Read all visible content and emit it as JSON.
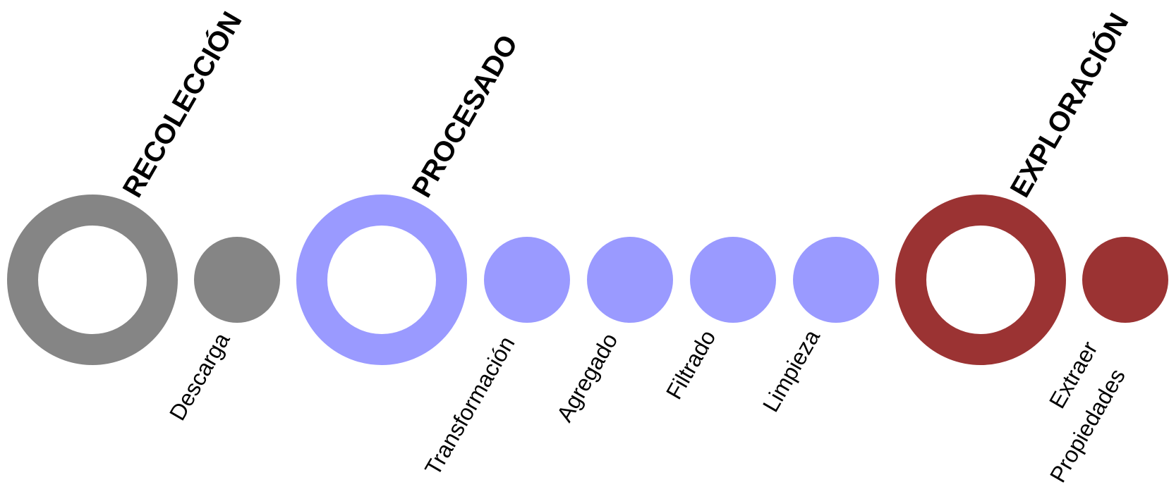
{
  "colors": {
    "recoleccion": "#858585",
    "procesado": "#9a9aff",
    "exploracion": "#9b3333"
  },
  "phases": [
    {
      "id": "recoleccion",
      "label": "RECOLECCIÓN",
      "color": "#858585"
    },
    {
      "id": "procesado",
      "label": "PROCESADO",
      "color": "#9a9aff"
    },
    {
      "id": "exploracion",
      "label": "EXPLORACIÓN",
      "color": "#9b3333"
    }
  ],
  "steps": [
    {
      "id": "descarga",
      "phase": "recoleccion",
      "lines": [
        "Descarga"
      ]
    },
    {
      "id": "transformacion",
      "phase": "procesado",
      "lines": [
        "Transformación"
      ]
    },
    {
      "id": "agregado",
      "phase": "procesado",
      "lines": [
        "Agregado"
      ]
    },
    {
      "id": "filtrado",
      "phase": "procesado",
      "lines": [
        "Filtrado"
      ]
    },
    {
      "id": "limpieza",
      "phase": "procesado",
      "lines": [
        "Limpieza"
      ]
    },
    {
      "id": "extraer-propiedades",
      "phase": "exploracion",
      "lines": [
        "Extraer",
        "Propiedades"
      ]
    }
  ]
}
